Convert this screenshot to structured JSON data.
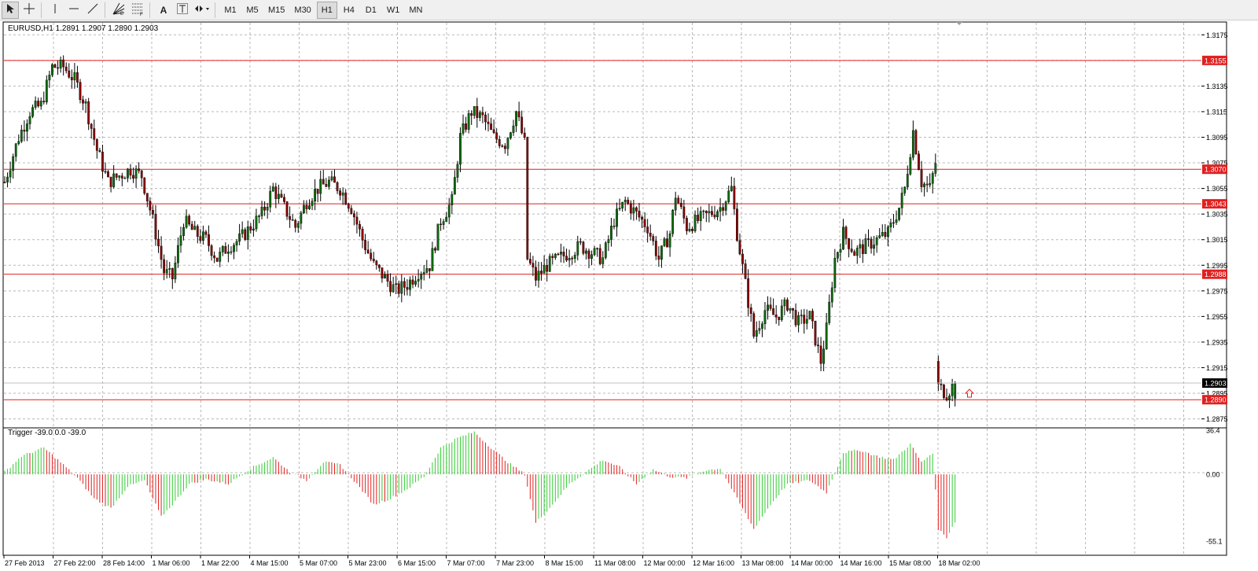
{
  "toolbar": {
    "tools": [
      {
        "name": "cursor-tool",
        "icon": "arrow-cursor-icon",
        "active": true
      },
      {
        "name": "crosshair-tool",
        "icon": "crosshair-icon",
        "active": false
      },
      {
        "name": "vertical-line-tool",
        "icon": "vertical-line-icon",
        "active": false
      },
      {
        "name": "horizontal-line-tool",
        "icon": "horizontal-line-icon",
        "active": false
      },
      {
        "name": "trendline-tool",
        "icon": "trendline-icon",
        "active": false
      },
      {
        "name": "fibonacci-fan-tool",
        "icon": "fan-icon",
        "active": false
      },
      {
        "name": "fibonacci-tool",
        "icon": "fibonacci-icon",
        "active": false
      },
      {
        "name": "text-tool",
        "icon": "text-a-icon",
        "active": false
      },
      {
        "name": "text-label-tool",
        "icon": "text-label-icon",
        "active": false
      },
      {
        "name": "arrows-tool",
        "icon": "arrows-dropdown-icon",
        "active": false
      }
    ],
    "text_tool_label": "A",
    "timeframes": [
      "M1",
      "M5",
      "M15",
      "M30",
      "H1",
      "H4",
      "D1",
      "W1",
      "MN"
    ],
    "active_timeframe": "H1"
  },
  "main_chart": {
    "header": "EURUSD,H1  1.2891 1.2907 1.2890 1.2903",
    "price_ticks": [
      "1.3175",
      "1.3135",
      "1.3115",
      "1.3095",
      "1.3075",
      "1.3055",
      "1.3035",
      "1.3015",
      "1.2995",
      "1.2975",
      "1.2955",
      "1.2935",
      "1.2915",
      "1.2895",
      "1.2875"
    ],
    "current_price": "1.2903",
    "horizontal_lines": [
      "1.3155",
      "1.3070",
      "1.3043",
      "1.2988",
      "1.2890"
    ],
    "colors": {
      "bull": "#0a6b0a",
      "bear": "#8b0000",
      "hline": "#e02020",
      "grid": "#b8b8b8",
      "current_tag": "#000000"
    }
  },
  "indicator": {
    "header": "Trigger -39.0 0.0 -39.0",
    "ticks": [
      "36.4",
      "0.00",
      "-55.1"
    ],
    "colors": {
      "up": "#33cc33",
      "down": "#e02020"
    }
  },
  "time_axis": [
    "27 Feb 2013",
    "27 Feb 22:00",
    "28 Feb 14:00",
    "1 Mar 06:00",
    "1 Mar 22:00",
    "4 Mar 15:00",
    "5 Mar 07:00",
    "5 Mar 23:00",
    "6 Mar 15:00",
    "7 Mar 07:00",
    "7 Mar 23:00",
    "8 Mar 15:00",
    "11 Mar 08:00",
    "12 Mar 00:00",
    "12 Mar 16:00",
    "13 Mar 08:00",
    "14 Mar 00:00",
    "14 Mar 16:00",
    "15 Mar 08:00",
    "18 Mar 02:00"
  ],
  "chart_data": {
    "type": "candlestick",
    "title": "EURUSD,H1",
    "ohlc_last": {
      "open": 1.2891,
      "high": 1.2907,
      "low": 1.289,
      "close": 1.2903
    },
    "ylim": [
      1.2868,
      1.3185
    ],
    "close_anchors": [
      [
        0,
        1.306
      ],
      [
        5,
        1.3095
      ],
      [
        9,
        1.3115
      ],
      [
        13,
        1.312
      ],
      [
        17,
        1.315
      ],
      [
        21,
        1.315
      ],
      [
        25,
        1.314
      ],
      [
        29,
        1.312
      ],
      [
        33,
        1.3085
      ],
      [
        37,
        1.306
      ],
      [
        41,
        1.3065
      ],
      [
        45,
        1.307
      ],
      [
        49,
        1.3065
      ],
      [
        53,
        1.303
      ],
      [
        57,
        1.299
      ],
      [
        60,
        1.2985
      ],
      [
        64,
        1.303
      ],
      [
        68,
        1.302
      ],
      [
        72,
        1.3015
      ],
      [
        76,
        1.3
      ],
      [
        80,
        1.301
      ],
      [
        84,
        1.3015
      ],
      [
        88,
        1.3025
      ],
      [
        92,
        1.3035
      ],
      [
        96,
        1.3055
      ],
      [
        100,
        1.304
      ],
      [
        104,
        1.3025
      ],
      [
        108,
        1.3045
      ],
      [
        112,
        1.3055
      ],
      [
        116,
        1.306
      ],
      [
        120,
        1.3055
      ],
      [
        124,
        1.304
      ],
      [
        128,
        1.3015
      ],
      [
        132,
        1.2995
      ],
      [
        136,
        1.2985
      ],
      [
        140,
        1.2975
      ],
      [
        144,
        1.298
      ],
      [
        148,
        1.299
      ],
      [
        152,
        1.2995
      ],
      [
        156,
        1.303
      ],
      [
        160,
        1.3045
      ],
      [
        163,
        1.3095
      ],
      [
        167,
        1.3115
      ],
      [
        171,
        1.311
      ],
      [
        175,
        1.3095
      ],
      [
        179,
        1.309
      ],
      [
        183,
        1.3115
      ],
      [
        186,
        1.309
      ],
      [
        187,
        1.3
      ],
      [
        190,
        1.2985
      ],
      [
        194,
        1.2995
      ],
      [
        198,
        1.3
      ],
      [
        202,
        1.3005
      ],
      [
        206,
        1.301
      ],
      [
        210,
        1.3005
      ],
      [
        214,
        1.3
      ],
      [
        218,
        1.303
      ],
      [
        222,
        1.3045
      ],
      [
        226,
        1.3035
      ],
      [
        230,
        1.3025
      ],
      [
        234,
        1.3
      ],
      [
        238,
        1.302
      ],
      [
        240,
        1.305
      ],
      [
        244,
        1.3025
      ],
      [
        248,
        1.303
      ],
      [
        252,
        1.3035
      ],
      [
        256,
        1.304
      ],
      [
        260,
        1.3055
      ],
      [
        262,
        1.302
      ],
      [
        265,
        1.298
      ],
      [
        268,
        1.294
      ],
      [
        272,
        1.296
      ],
      [
        276,
        1.2955
      ],
      [
        280,
        1.2965
      ],
      [
        284,
        1.295
      ],
      [
        288,
        1.2955
      ],
      [
        292,
        1.292
      ],
      [
        294,
        1.2945
      ],
      [
        297,
        1.3
      ],
      [
        300,
        1.302
      ],
      [
        304,
        1.3005
      ],
      [
        308,
        1.301
      ],
      [
        312,
        1.3015
      ],
      [
        316,
        1.302
      ],
      [
        320,
        1.304
      ],
      [
        322,
        1.3055
      ],
      [
        325,
        1.31
      ],
      [
        328,
        1.306
      ],
      [
        331,
        1.3055
      ],
      [
        333,
        1.3075
      ],
      [
        334,
        1.29
      ],
      [
        337,
        1.2895
      ],
      [
        340,
        1.2903
      ]
    ],
    "indicator_series": {
      "name": "Trigger",
      "ylim": [
        -55.1,
        36.4
      ],
      "anchors": [
        [
          0,
          2
        ],
        [
          6,
          15
        ],
        [
          14,
          22
        ],
        [
          20,
          10
        ],
        [
          26,
          -3
        ],
        [
          32,
          -20
        ],
        [
          38,
          -28
        ],
        [
          44,
          -10
        ],
        [
          50,
          -5
        ],
        [
          56,
          -35
        ],
        [
          60,
          -25
        ],
        [
          66,
          -8
        ],
        [
          72,
          -4
        ],
        [
          80,
          -8
        ],
        [
          88,
          5
        ],
        [
          96,
          14
        ],
        [
          102,
          2
        ],
        [
          108,
          -5
        ],
        [
          114,
          10
        ],
        [
          120,
          8
        ],
        [
          126,
          -8
        ],
        [
          132,
          -25
        ],
        [
          138,
          -20
        ],
        [
          144,
          -12
        ],
        [
          150,
          -2
        ],
        [
          156,
          22
        ],
        [
          162,
          30
        ],
        [
          168,
          35
        ],
        [
          174,
          22
        ],
        [
          180,
          10
        ],
        [
          186,
          0
        ],
        [
          190,
          -40
        ],
        [
          196,
          -25
        ],
        [
          202,
          -8
        ],
        [
          208,
          2
        ],
        [
          214,
          12
        ],
        [
          220,
          6
        ],
        [
          226,
          -8
        ],
        [
          232,
          4
        ],
        [
          238,
          -2
        ],
        [
          244,
          -3
        ],
        [
          250,
          3
        ],
        [
          256,
          5
        ],
        [
          262,
          -20
        ],
        [
          268,
          -45
        ],
        [
          274,
          -25
        ],
        [
          280,
          -8
        ],
        [
          288,
          -5
        ],
        [
          294,
          -15
        ],
        [
          300,
          18
        ],
        [
          306,
          20
        ],
        [
          312,
          15
        ],
        [
          318,
          12
        ],
        [
          324,
          25
        ],
        [
          328,
          10
        ],
        [
          332,
          18
        ],
        [
          334,
          -45
        ],
        [
          337,
          -52
        ],
        [
          340,
          -39
        ]
      ]
    }
  }
}
